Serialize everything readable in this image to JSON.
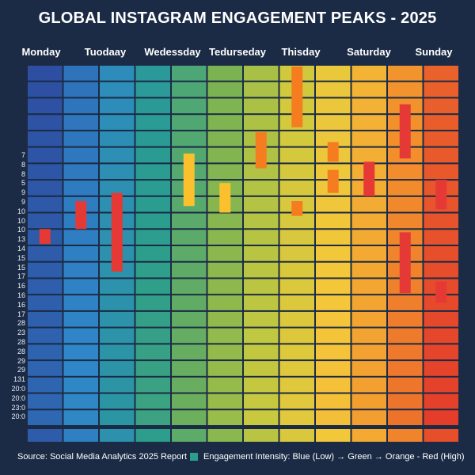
{
  "title": "GLOBAL INSTAGRAM ENGAGEMENT PEAKS - 2025",
  "source": "Source: Social Media Analytics 2025 Report",
  "legend": {
    "label": "Engagement Intensity: Blue (Low) → Green → Orange - Red (High)",
    "swatch_color": "#2a9d8f"
  },
  "chart_data": {
    "type": "heatmap",
    "title": "GLOBAL INSTAGRAM ENGAGEMENT PEAKS - 2025",
    "days": [
      "Monday",
      "Tuodaay",
      "Wedessday",
      "Tedurseday",
      "Thisday",
      "Saturday",
      "Sunday"
    ],
    "y_labels": [
      "7",
      "8",
      "8",
      "5",
      "9",
      "9",
      "10",
      "10",
      "10",
      "13",
      "14",
      "15",
      "15",
      "17",
      "16",
      "16",
      "16",
      "17",
      "28",
      "23",
      "28",
      "28",
      "29",
      "29",
      "131",
      "20:0",
      "20:0",
      "23:0",
      "20:0"
    ],
    "intensity_scale": [
      "#2e4a9e",
      "#2f87c8",
      "#2a9d8f",
      "#7bb352",
      "#c9c93e",
      "#f4c73a",
      "#f28f2c",
      "#e2352a"
    ],
    "columns": 12,
    "rows": 22,
    "highlights": [
      {
        "column": 0,
        "row_start": 10.0,
        "row_end": 10.9,
        "color": "#e53935"
      },
      {
        "column": 1,
        "row_start": 8.3,
        "row_end": 10.0,
        "color": "#e53935"
      },
      {
        "column": 2,
        "row_start": 7.8,
        "row_end": 12.6,
        "color": "#e53935"
      },
      {
        "column": 4,
        "row_start": 5.4,
        "row_end": 8.6,
        "color": "#fbc02d"
      },
      {
        "column": 5,
        "row_start": 7.2,
        "row_end": 9.0,
        "color": "#fbc02d"
      },
      {
        "column": 6,
        "row_start": 4.1,
        "row_end": 6.3,
        "color": "#f57c1f"
      },
      {
        "column": 7,
        "row_start": 0.1,
        "row_end": 3.8,
        "color": "#f57c1f"
      },
      {
        "column": 7,
        "row_start": 8.3,
        "row_end": 9.2,
        "color": "#f57c1f"
      },
      {
        "column": 8,
        "row_start": 4.7,
        "row_end": 5.9,
        "color": "#f57c1f"
      },
      {
        "column": 8,
        "row_start": 6.4,
        "row_end": 7.8,
        "color": "#f57c1f"
      },
      {
        "column": 9,
        "row_start": 5.9,
        "row_end": 8.0,
        "color": "#e53935"
      },
      {
        "column": 10,
        "row_start": 2.4,
        "row_end": 5.7,
        "color": "#e53935"
      },
      {
        "column": 10,
        "row_start": 10.2,
        "row_end": 13.9,
        "color": "#e53935"
      },
      {
        "column": 11,
        "row_start": 7.0,
        "row_end": 8.8,
        "color": "#e53935"
      },
      {
        "column": 11,
        "row_start": 13.2,
        "row_end": 14.5,
        "color": "#e53935"
      }
    ]
  }
}
